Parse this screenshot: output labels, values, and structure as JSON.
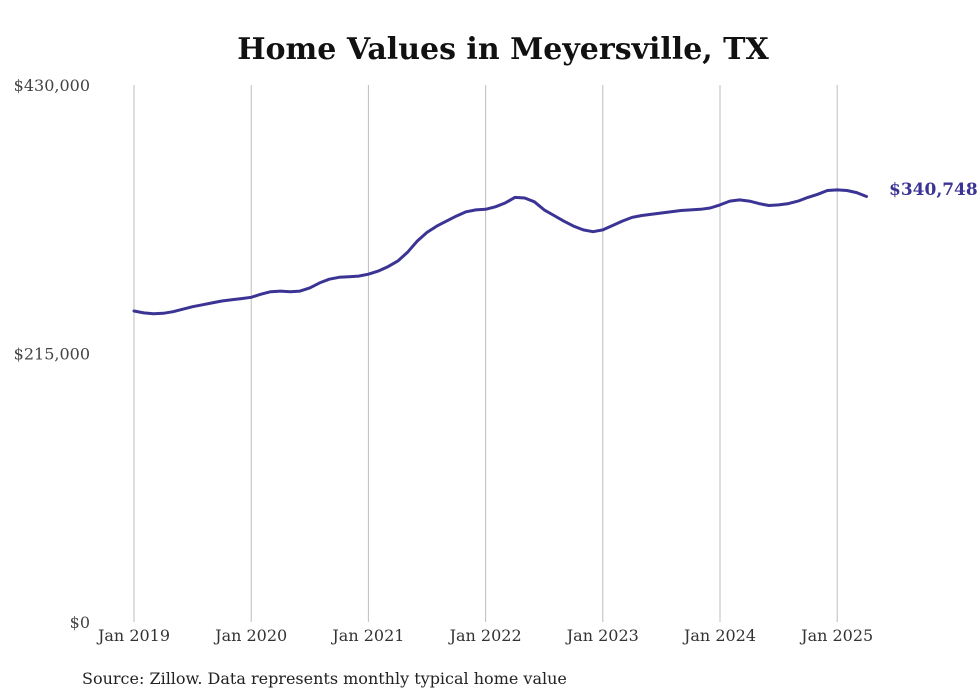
{
  "chart_data": {
    "type": "line",
    "title": "Home Values in Meyersville, TX",
    "ylim": [
      0,
      430000
    ],
    "y_ticks": [
      {
        "value": 0,
        "label": "$0"
      },
      {
        "value": 215000,
        "label": "$215,000"
      },
      {
        "value": 430000,
        "label": "$430,000"
      }
    ],
    "x_ticks": [
      {
        "value": "2019-01",
        "label": "Jan 2019"
      },
      {
        "value": "2020-01",
        "label": "Jan 2020"
      },
      {
        "value": "2021-01",
        "label": "Jan 2021"
      },
      {
        "value": "2022-01",
        "label": "Jan 2022"
      },
      {
        "value": "2023-01",
        "label": "Jan 2023"
      },
      {
        "value": "2024-01",
        "label": "Jan 2024"
      },
      {
        "value": "2025-01",
        "label": "Jan 2025"
      }
    ],
    "grid": "vertical",
    "legend": "none",
    "line_color": "#3b3494",
    "end_label": "$340,748",
    "series": [
      {
        "x": [
          "2019-01",
          "2019-02",
          "2019-03",
          "2019-04",
          "2019-05",
          "2019-06",
          "2019-07",
          "2019-08",
          "2019-09",
          "2019-10",
          "2019-11",
          "2019-12",
          "2020-01",
          "2020-02",
          "2020-03",
          "2020-04",
          "2020-05",
          "2020-06",
          "2020-07",
          "2020-08",
          "2020-09",
          "2020-10",
          "2020-11",
          "2020-12",
          "2021-01",
          "2021-02",
          "2021-03",
          "2021-04",
          "2021-05",
          "2021-06",
          "2021-07",
          "2021-08",
          "2021-09",
          "2021-10",
          "2021-11",
          "2021-12",
          "2022-01",
          "2022-02",
          "2022-03",
          "2022-04",
          "2022-05",
          "2022-06",
          "2022-07",
          "2022-08",
          "2022-09",
          "2022-10",
          "2022-11",
          "2022-12",
          "2023-01",
          "2023-02",
          "2023-03",
          "2023-04",
          "2023-05",
          "2023-06",
          "2023-07",
          "2023-08",
          "2023-09",
          "2023-10",
          "2023-11",
          "2023-12",
          "2024-01",
          "2024-02",
          "2024-03",
          "2024-04",
          "2024-05",
          "2024-06",
          "2024-07",
          "2024-08",
          "2024-09",
          "2024-10",
          "2024-11",
          "2024-12",
          "2025-01",
          "2025-02",
          "2025-03",
          "2025-04"
        ],
        "values": [
          249000,
          247500,
          246800,
          247200,
          248500,
          250500,
          252500,
          254000,
          255500,
          257000,
          258000,
          259000,
          260000,
          262500,
          264500,
          265000,
          264500,
          265000,
          267500,
          271500,
          274500,
          276000,
          276500,
          277000,
          278500,
          281000,
          284500,
          289000,
          296000,
          305000,
          312000,
          317000,
          321000,
          325000,
          328500,
          330000,
          330500,
          332500,
          335500,
          340000,
          339500,
          336500,
          330000,
          325500,
          321000,
          317000,
          314000,
          312500,
          314000,
          317500,
          321000,
          324000,
          325500,
          326500,
          327500,
          328500,
          329500,
          330000,
          330500,
          331500,
          334000,
          337000,
          338000,
          337000,
          335000,
          333500,
          334000,
          335000,
          337000,
          340000,
          342500,
          345500,
          346000,
          345500,
          343800,
          340748
        ]
      }
    ]
  },
  "caption": "Source: Zillow. Data represents monthly typical home value"
}
